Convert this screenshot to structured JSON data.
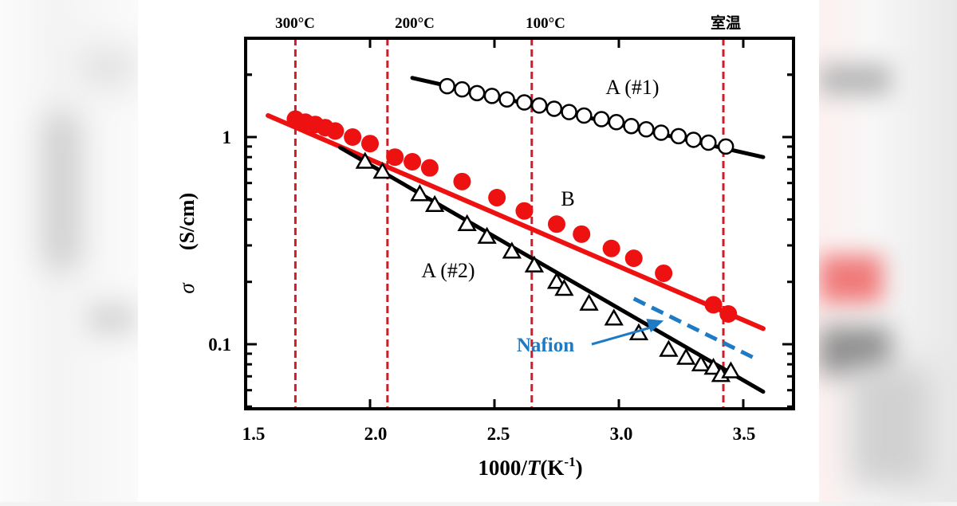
{
  "chart_data": {
    "type": "scatter",
    "title": "",
    "xlabel_prefix": "1000/",
    "xlabel_var": "T",
    "xlabel_unit_open": "(K",
    "xlabel_unit_sup": "-1",
    "xlabel_unit_close": ")",
    "ylabel_symbol": "σ",
    "ylabel_unit": "(S/cm)",
    "xlim": [
      1.5,
      3.7
    ],
    "ylim": [
      0.05,
      3.0
    ],
    "yscale": "log",
    "grid": false,
    "x_ticks": [
      {
        "value": 1.5,
        "label": "1.5"
      },
      {
        "value": 2.0,
        "label": "2.0"
      },
      {
        "value": 2.5,
        "label": "2.5"
      },
      {
        "value": 3.0,
        "label": "3.0"
      },
      {
        "value": 3.5,
        "label": "3.5"
      }
    ],
    "y_ticks": [
      {
        "value": 1,
        "label": "1"
      },
      {
        "value": 0.1,
        "label": "0.1"
      }
    ],
    "temperature_markers": [
      {
        "x": 1.7,
        "label": "300°C"
      },
      {
        "x": 2.07,
        "label": "200°C"
      },
      {
        "x": 2.65,
        "label": "100°C"
      },
      {
        "x": 3.42,
        "label": "室温"
      }
    ],
    "series": [
      {
        "name": "A (#1)",
        "marker": "open-circle",
        "color": "#000000",
        "fit_line": [
          [
            2.17,
            1.93
          ],
          [
            3.58,
            0.8
          ]
        ],
        "x": [
          2.31,
          2.37,
          2.43,
          2.49,
          2.55,
          2.62,
          2.68,
          2.74,
          2.8,
          2.86,
          2.93,
          2.99,
          3.05,
          3.11,
          3.17,
          3.24,
          3.3,
          3.36,
          3.43
        ],
        "y": [
          1.76,
          1.7,
          1.63,
          1.58,
          1.52,
          1.47,
          1.42,
          1.37,
          1.32,
          1.27,
          1.22,
          1.18,
          1.13,
          1.09,
          1.05,
          1.01,
          0.97,
          0.94,
          0.9
        ]
      },
      {
        "name": "B",
        "marker": "filled-circle",
        "color": "#ee1111",
        "fit_line": [
          [
            1.59,
            1.27
          ],
          [
            3.58,
            0.119
          ]
        ],
        "x": [
          1.7,
          1.74,
          1.78,
          1.82,
          1.86,
          1.93,
          2.0,
          2.1,
          2.17,
          2.24,
          2.37,
          2.51,
          2.62,
          2.75,
          2.85,
          2.97,
          3.06,
          3.18,
          3.38,
          3.44
        ],
        "y": [
          1.22,
          1.18,
          1.15,
          1.11,
          1.07,
          1.0,
          0.93,
          0.8,
          0.76,
          0.71,
          0.61,
          0.51,
          0.44,
          0.38,
          0.34,
          0.29,
          0.26,
          0.22,
          0.155,
          0.14
        ]
      },
      {
        "name": "A (#2)",
        "marker": "open-triangle",
        "color": "#000000",
        "fit_line": [
          [
            1.88,
            0.89
          ],
          [
            3.58,
            0.059
          ]
        ],
        "x": [
          1.98,
          2.05,
          2.2,
          2.26,
          2.39,
          2.47,
          2.57,
          2.66,
          2.75,
          2.78,
          2.88,
          2.98,
          3.08,
          3.2,
          3.27,
          3.33,
          3.38,
          3.41,
          3.45
        ],
        "y": [
          0.76,
          0.68,
          0.53,
          0.47,
          0.38,
          0.33,
          0.28,
          0.24,
          0.2,
          0.185,
          0.157,
          0.133,
          0.113,
          0.094,
          0.086,
          0.08,
          0.077,
          0.071,
          0.074
        ]
      },
      {
        "name": "Nafion",
        "marker": "none",
        "line_style": "dashed",
        "color": "#1f7ac4",
        "x": [
          3.06,
          3.56
        ],
        "y": [
          0.166,
          0.084
        ]
      }
    ],
    "annotations": [
      {
        "text": "A (#1)",
        "x": 2.95,
        "y": 1.65
      },
      {
        "text": "B",
        "x": 2.79,
        "y": 0.56
      },
      {
        "text": "A (#2)",
        "x": 2.35,
        "y": 0.23
      },
      {
        "text": "Nafion",
        "x": 2.2,
        "y": 0.094,
        "arrow_to": [
          3.18,
          0.13
        ],
        "color": "#1f7ac4"
      }
    ]
  }
}
